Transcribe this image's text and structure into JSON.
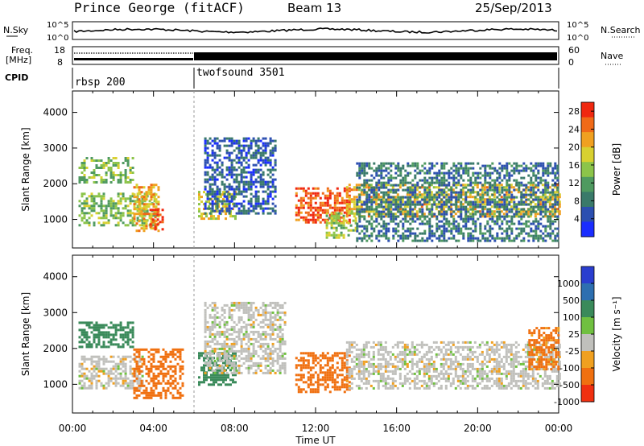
{
  "header": {
    "station": "Prince George (fitACF)",
    "beam": "Beam 13",
    "date": "25/Sep/2013"
  },
  "summary_panels": {
    "nsky_label": "N.Sky",
    "nsearch_label": "N.Search",
    "nsky_ticks": [
      "10^5",
      "10^0"
    ],
    "nsearch_ticks": [
      "10^5",
      "10^0"
    ],
    "freq_label_line1": "Freq.",
    "freq_label_line2": "[MHz]",
    "freq_ticks": [
      "18",
      "8"
    ],
    "nave_label": "Nave",
    "nave_ticks": [
      "60",
      "0"
    ],
    "cpid_label": "CPID",
    "cpid_segments": [
      {
        "name": "rbsp 200",
        "start_hour": 0,
        "end_hour": 6
      },
      {
        "name": "twofsound 3501",
        "start_hour": 6,
        "end_hour": 24
      }
    ]
  },
  "chart_data": [
    {
      "type": "heatmap",
      "title": "",
      "ylabel": "Slant Range [km]",
      "xlabel": "",
      "xlim": [
        0,
        24
      ],
      "ylim": [
        200,
        4600
      ],
      "y_ticks": [
        1000,
        2000,
        3000,
        4000
      ],
      "colorbar": {
        "label": "Power [dB]",
        "ticks": [
          4,
          8,
          12,
          16,
          20,
          24,
          28
        ],
        "range": [
          0,
          30
        ],
        "colors": [
          "#1a2dff",
          "#2c4fb0",
          "#3a7a6a",
          "#4f9a60",
          "#8cc44a",
          "#d8d030",
          "#f0a020",
          "#f06a18",
          "#f02810"
        ]
      },
      "regions": [
        {
          "hour_start": 0.3,
          "hour_end": 3.0,
          "range_start": 2050,
          "range_end": 2750,
          "value": 14
        },
        {
          "hour_start": 0.3,
          "hour_end": 4.2,
          "range_start": 850,
          "range_end": 1750,
          "value": 14
        },
        {
          "hour_start": 3.0,
          "hour_end": 4.3,
          "range_start": 700,
          "range_end": 2000,
          "value": 22
        },
        {
          "hour_start": 3.8,
          "hour_end": 4.5,
          "range_start": 700,
          "range_end": 1300,
          "value": 28
        },
        {
          "hour_start": 6.2,
          "hour_end": 8.0,
          "range_start": 1000,
          "range_end": 1800,
          "value": 18
        },
        {
          "hour_start": 6.5,
          "hour_end": 10.0,
          "range_start": 1200,
          "range_end": 3300,
          "value": 6
        },
        {
          "hour_start": 11.0,
          "hour_end": 13.7,
          "range_start": 900,
          "range_end": 1900,
          "value": 26
        },
        {
          "hour_start": 12.5,
          "hour_end": 14.0,
          "range_start": 500,
          "range_end": 1200,
          "value": 16
        },
        {
          "hour_start": 13.5,
          "hour_end": 24.0,
          "range_start": 1100,
          "range_end": 2000,
          "value": 20
        },
        {
          "hour_start": 14.0,
          "hour_end": 24.0,
          "range_start": 400,
          "range_end": 2600,
          "value": 8
        }
      ]
    },
    {
      "type": "heatmap",
      "title": "",
      "ylabel": "Slant Range [km]",
      "xlabel": "Time UT",
      "xlim": [
        0,
        24
      ],
      "ylim": [
        200,
        4600
      ],
      "y_ticks": [
        1000,
        2000,
        3000,
        4000
      ],
      "x_ticks": [
        "00:00",
        "04:00",
        "08:00",
        "12:00",
        "16:00",
        "20:00",
        "00:00"
      ],
      "colorbar": {
        "label": "Velocity [m s⁻¹]",
        "ticks": [
          1000,
          500,
          100,
          25,
          -25,
          -100,
          -500,
          -1000
        ],
        "colors": [
          "#2a3ecf",
          "#2d6fb0",
          "#3a8a5a",
          "#70c040",
          "#c0c0bc",
          "#f0a020",
          "#f07010",
          "#f03010"
        ]
      },
      "regions": [
        {
          "hour_start": 0.3,
          "hour_end": 3.0,
          "range_start": 2050,
          "range_end": 2750,
          "value": 150
        },
        {
          "hour_start": 0.3,
          "hour_end": 3.5,
          "range_start": 900,
          "range_end": 1800,
          "value": 0
        },
        {
          "hour_start": 3.0,
          "hour_end": 5.5,
          "range_start": 600,
          "range_end": 2000,
          "value": -150
        },
        {
          "hour_start": 6.2,
          "hour_end": 8.0,
          "range_start": 1000,
          "range_end": 1900,
          "value": 300
        },
        {
          "hour_start": 6.5,
          "hour_end": 10.5,
          "range_start": 1300,
          "range_end": 3300,
          "value": 0
        },
        {
          "hour_start": 11.0,
          "hour_end": 13.7,
          "range_start": 800,
          "range_end": 1900,
          "value": -200
        },
        {
          "hour_start": 13.5,
          "hour_end": 24.0,
          "range_start": 900,
          "range_end": 2200,
          "value": 0
        },
        {
          "hour_start": 22.5,
          "hour_end": 24.0,
          "range_start": 1400,
          "range_end": 2600,
          "value": -120
        }
      ]
    }
  ]
}
